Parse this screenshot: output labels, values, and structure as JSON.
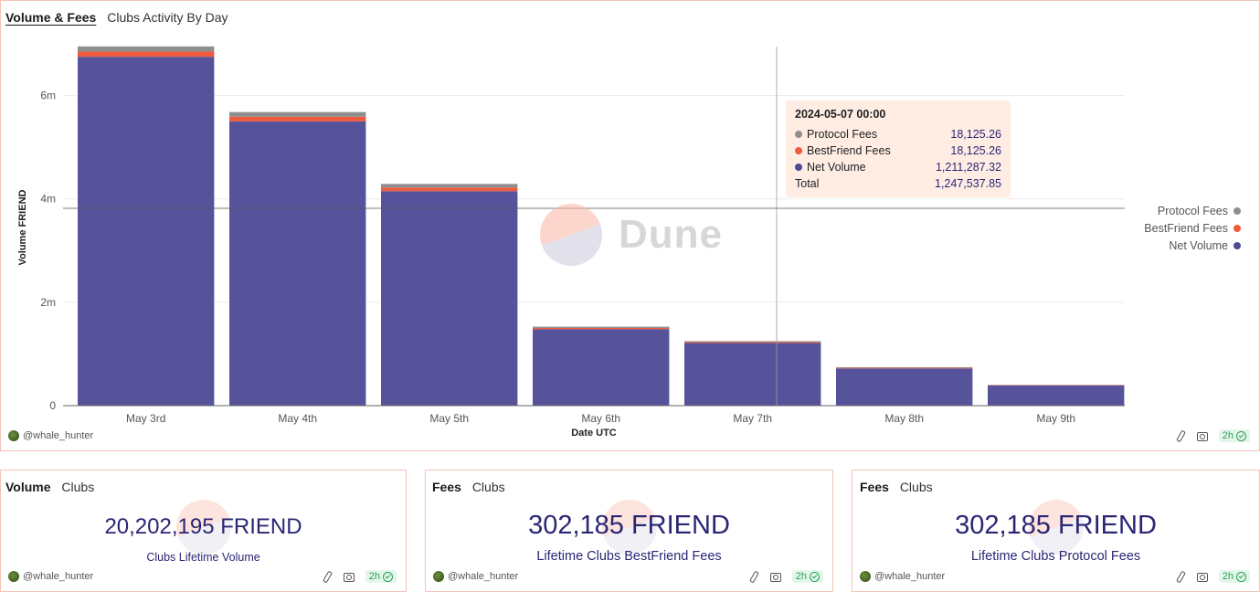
{
  "main": {
    "tab_active": "Volume & Fees",
    "tab_inactive": "Clubs Activity By Day",
    "author": "@whale_hunter",
    "refresh": "2h"
  },
  "watermark": "Dune",
  "tooltip": {
    "title": "2024-05-07 00:00",
    "rows": [
      {
        "name": "Protocol Fees",
        "value": "18,125.26",
        "color": "#8e8e8e"
      },
      {
        "name": "BestFriend Fees",
        "value": "18,125.26",
        "color": "#ef5b3c"
      },
      {
        "name": "Net Volume",
        "value": "1,211,287.32",
        "color": "#4f4a97"
      }
    ],
    "total_label": "Total",
    "total_value": "1,247,537.85"
  },
  "legend": [
    {
      "name": "Protocol Fees",
      "color": "#8e8e8e"
    },
    {
      "name": "BestFriend Fees",
      "color": "#ef5b3c"
    },
    {
      "name": "Net Volume",
      "color": "#4f4a97"
    }
  ],
  "chart_data": {
    "type": "bar",
    "stacked": true,
    "categories": [
      "May 3rd",
      "May 4th",
      "May 5th",
      "May 6th",
      "May 7th",
      "May 8th",
      "May 9th"
    ],
    "series": [
      {
        "name": "Net Volume",
        "color": "#57539b",
        "values": [
          6750000,
          5500000,
          4150000,
          1480000,
          1211287.32,
          720000,
          390000
        ]
      },
      {
        "name": "BestFriend Fees",
        "color": "#ef5b3c",
        "values": [
          100000,
          90000,
          70000,
          24000,
          18125.26,
          12000,
          6000
        ]
      },
      {
        "name": "Protocol Fees",
        "color": "#8e8e8e",
        "values": [
          100000,
          90000,
          70000,
          24000,
          18125.26,
          12000,
          6000
        ]
      }
    ],
    "xlabel": "Date UTC",
    "ylabel": "Volume FRIEND",
    "yticks": [
      0,
      2000000,
      4000000,
      6000000
    ],
    "ytick_labels": [
      "0",
      "2m",
      "4m",
      "6m"
    ],
    "ylim": [
      0,
      7000000
    ],
    "grid": true,
    "legend_position": "right"
  },
  "counters": [
    {
      "tab_active": "Volume",
      "tab_inactive": "Clubs",
      "value": "20,202,195 FRIEND",
      "label": "Clubs Lifetime Volume",
      "author": "@whale_hunter",
      "refresh": "2h"
    },
    {
      "tab_active": "Fees",
      "tab_inactive": "Clubs",
      "value": "302,185 FRIEND",
      "label": "Lifetime Clubs BestFriend Fees",
      "author": "@whale_hunter",
      "refresh": "2h"
    },
    {
      "tab_active": "Fees",
      "tab_inactive": "Clubs",
      "value": "302,185 FRIEND",
      "label": "Lifetime Clubs Protocol Fees",
      "author": "@whale_hunter",
      "refresh": "2h"
    }
  ]
}
